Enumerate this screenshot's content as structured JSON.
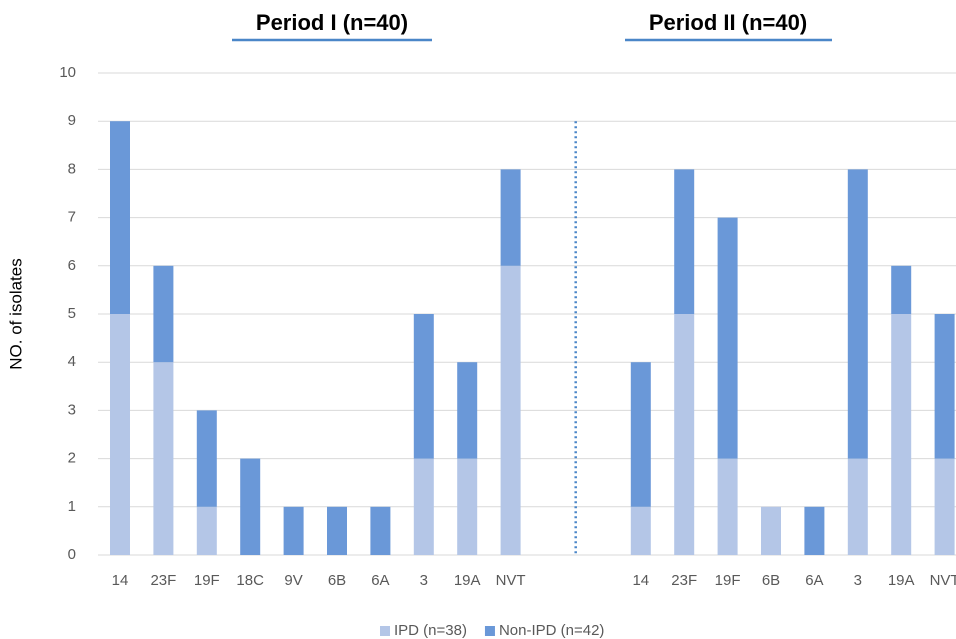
{
  "chart_data": {
    "type": "bar",
    "stacked": true,
    "titles": [
      "Period I (n=40)",
      "Period II (n=40)"
    ],
    "y_label": "NO. of isolates",
    "categories": [
      "14",
      "23F",
      "19F",
      "18C",
      "9V",
      "6B",
      "6A",
      "3",
      "19A",
      "NVT",
      null,
      null,
      "14",
      "23F",
      "19F",
      "6B",
      "6A",
      "3",
      "19A",
      "NVT"
    ],
    "series": [
      {
        "name": "IPD (n=38)",
        "color": "#b4c6e7",
        "values": [
          5,
          4,
          1,
          0,
          0,
          0,
          0,
          2,
          2,
          6,
          null,
          null,
          1,
          5,
          2,
          1,
          0,
          2,
          5,
          2
        ]
      },
      {
        "name": "Non-IPD (n=42)",
        "color": "#6a98d8",
        "values": [
          4,
          2,
          2,
          2,
          1,
          1,
          1,
          3,
          2,
          2,
          null,
          null,
          3,
          3,
          5,
          0,
          1,
          6,
          1,
          3
        ]
      }
    ],
    "ylim": [
      0,
      10
    ],
    "yticks": [
      0,
      1,
      2,
      3,
      4,
      5,
      6,
      7,
      8,
      9,
      10
    ],
    "grid": true,
    "legend": "bottom"
  }
}
